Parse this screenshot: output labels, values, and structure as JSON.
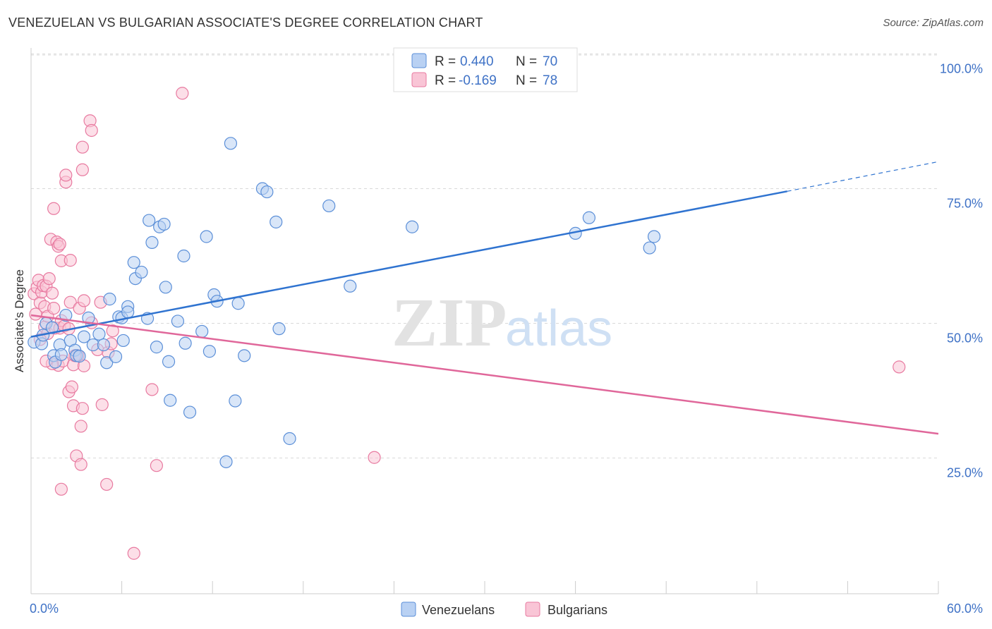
{
  "header": {
    "title": "VENEZUELAN VS BULGARIAN ASSOCIATE'S DEGREE CORRELATION CHART",
    "source": "Source: ZipAtlas.com"
  },
  "colors": {
    "blue": "#5b8fd8",
    "blue_fill": "#b9d1f3",
    "blue_line": "#2f73d0",
    "pink": "#e87aa0",
    "pink_fill": "#f9c5d6",
    "pink_line": "#e0679a",
    "axis_text": "#3f72c6",
    "grid": "#d9d9d9"
  },
  "legend": {
    "rows": [
      {
        "r_label": "R =",
        "r_value": "0.440",
        "n_label": "N =",
        "n_value": "70"
      },
      {
        "r_label": "R =",
        "r_value": "-0.169",
        "n_label": "N =",
        "n_value": "78"
      }
    ]
  },
  "bottom_legend": {
    "items": [
      "Venezuelans",
      "Bulgarians"
    ]
  },
  "watermark": {
    "zip": "ZIP",
    "atlas": "atlas"
  },
  "chart_data": {
    "type": "scatter",
    "title": "VENEZUELAN VS BULGARIAN ASSOCIATE'S DEGREE CORRELATION CHART",
    "xlabel": "",
    "ylabel": "Associate's Degree",
    "xlim": [
      0,
      60
    ],
    "ylim": [
      0,
      105
    ],
    "x_tick_labels": [
      "0.0%",
      "60.0%"
    ],
    "y_ticks": [
      25,
      50,
      75,
      100
    ],
    "y_tick_labels": [
      "25.0%",
      "50.0%",
      "75.0%",
      "100.0%"
    ],
    "grid": true,
    "series": [
      {
        "name": "Venezuelans",
        "r": 0.44,
        "n": 70,
        "trend": {
          "x0": 0,
          "y0": 47.5,
          "x1": 50,
          "y1": 74.5,
          "dashed_to_x": 60,
          "dashed_to_y": 80
        },
        "points": [
          [
            0.2,
            46.5
          ],
          [
            0.7,
            46.2
          ],
          [
            0.8,
            47.8
          ],
          [
            1.0,
            50.0
          ],
          [
            1.4,
            49.2
          ],
          [
            1.5,
            44.0
          ],
          [
            1.6,
            42.8
          ],
          [
            1.9,
            46.0
          ],
          [
            2.0,
            44.2
          ],
          [
            2.3,
            51.5
          ],
          [
            2.6,
            46.8
          ],
          [
            2.9,
            45.0
          ],
          [
            3.0,
            44.0
          ],
          [
            3.2,
            43.9
          ],
          [
            3.5,
            47.5
          ],
          [
            3.8,
            51.0
          ],
          [
            4.1,
            46.0
          ],
          [
            4.5,
            48.0
          ],
          [
            4.8,
            46.0
          ],
          [
            5.0,
            42.7
          ],
          [
            5.2,
            54.5
          ],
          [
            5.6,
            43.8
          ],
          [
            5.8,
            51.2
          ],
          [
            6.0,
            51.0
          ],
          [
            6.1,
            46.8
          ],
          [
            6.4,
            53.1
          ],
          [
            6.4,
            52.1
          ],
          [
            6.8,
            61.3
          ],
          [
            6.9,
            58.3
          ],
          [
            7.3,
            59.5
          ],
          [
            7.7,
            50.9
          ],
          [
            7.8,
            69.1
          ],
          [
            8.0,
            65.0
          ],
          [
            8.3,
            45.6
          ],
          [
            8.5,
            67.9
          ],
          [
            8.8,
            68.4
          ],
          [
            8.9,
            56.7
          ],
          [
            9.1,
            42.9
          ],
          [
            9.2,
            35.7
          ],
          [
            9.7,
            50.4
          ],
          [
            10.2,
            46.3
          ],
          [
            10.1,
            62.5
          ],
          [
            10.5,
            33.5
          ],
          [
            11.3,
            48.5
          ],
          [
            11.6,
            66.1
          ],
          [
            11.8,
            44.8
          ],
          [
            12.1,
            55.3
          ],
          [
            12.3,
            54.1
          ],
          [
            12.9,
            24.3
          ],
          [
            13.2,
            83.4
          ],
          [
            13.5,
            35.6
          ],
          [
            13.7,
            53.7
          ],
          [
            14.1,
            44.0
          ],
          [
            15.3,
            75.0
          ],
          [
            15.6,
            74.4
          ],
          [
            16.2,
            68.8
          ],
          [
            16.4,
            49.0
          ],
          [
            17.1,
            28.6
          ],
          [
            19.7,
            71.8
          ],
          [
            21.1,
            56.9
          ],
          [
            25.2,
            67.9
          ],
          [
            36.0,
            66.7
          ],
          [
            36.9,
            69.6
          ],
          [
            40.9,
            64.0
          ],
          [
            41.2,
            66.1
          ]
        ]
      },
      {
        "name": "Bulgarians",
        "r": -0.169,
        "n": 78,
        "trend": {
          "x0": 0,
          "y0": 51.5,
          "x1": 60,
          "y1": 29.5
        },
        "points": [
          [
            0.2,
            55.5
          ],
          [
            0.3,
            51.7
          ],
          [
            0.4,
            56.7
          ],
          [
            0.5,
            58.0
          ],
          [
            0.6,
            53.8
          ],
          [
            0.7,
            55.8
          ],
          [
            0.8,
            57.0
          ],
          [
            0.9,
            53.1
          ],
          [
            0.9,
            49.3
          ],
          [
            1.0,
            56.9
          ],
          [
            1.1,
            51.3
          ],
          [
            1.1,
            48.1
          ],
          [
            1.2,
            58.3
          ],
          [
            1.3,
            65.6
          ],
          [
            1.4,
            55.6
          ],
          [
            1.5,
            52.8
          ],
          [
            1.5,
            71.3
          ],
          [
            1.6,
            49.1
          ],
          [
            1.7,
            65.1
          ],
          [
            1.8,
            42.2
          ],
          [
            1.8,
            64.3
          ],
          [
            1.9,
            49.1
          ],
          [
            1.9,
            64.7
          ],
          [
            2.0,
            61.6
          ],
          [
            2.0,
            50.5
          ],
          [
            2.1,
            43.0
          ],
          [
            2.2,
            49.5
          ],
          [
            2.3,
            76.2
          ],
          [
            2.3,
            77.5
          ],
          [
            2.5,
            49.0
          ],
          [
            2.5,
            37.3
          ],
          [
            2.6,
            61.7
          ],
          [
            2.6,
            53.9
          ],
          [
            2.7,
            38.2
          ],
          [
            2.8,
            42.3
          ],
          [
            2.8,
            34.7
          ],
          [
            3.0,
            25.4
          ],
          [
            3.1,
            44.0
          ],
          [
            3.2,
            52.8
          ],
          [
            3.3,
            30.9
          ],
          [
            3.3,
            23.8
          ],
          [
            3.4,
            78.5
          ],
          [
            3.4,
            82.7
          ],
          [
            3.4,
            34.2
          ],
          [
            3.5,
            42.1
          ],
          [
            3.5,
            54.2
          ],
          [
            3.9,
            87.6
          ],
          [
            4.0,
            85.8
          ],
          [
            4.0,
            50.1
          ],
          [
            4.4,
            45.1
          ],
          [
            4.6,
            53.9
          ],
          [
            4.7,
            34.9
          ],
          [
            5.0,
            20.1
          ],
          [
            5.1,
            44.6
          ],
          [
            5.3,
            46.2
          ],
          [
            5.4,
            48.6
          ],
          [
            8.0,
            37.7
          ],
          [
            8.3,
            23.6
          ],
          [
            10.0,
            92.7
          ],
          [
            22.7,
            25.1
          ],
          [
            57.4,
            41.9
          ],
          [
            2.0,
            19.2
          ],
          [
            6.8,
            7.3
          ],
          [
            1.4,
            42.5
          ],
          [
            0.6,
            47.0
          ],
          [
            2.9,
            44.0
          ],
          [
            1.0,
            43.0
          ]
        ]
      }
    ]
  }
}
